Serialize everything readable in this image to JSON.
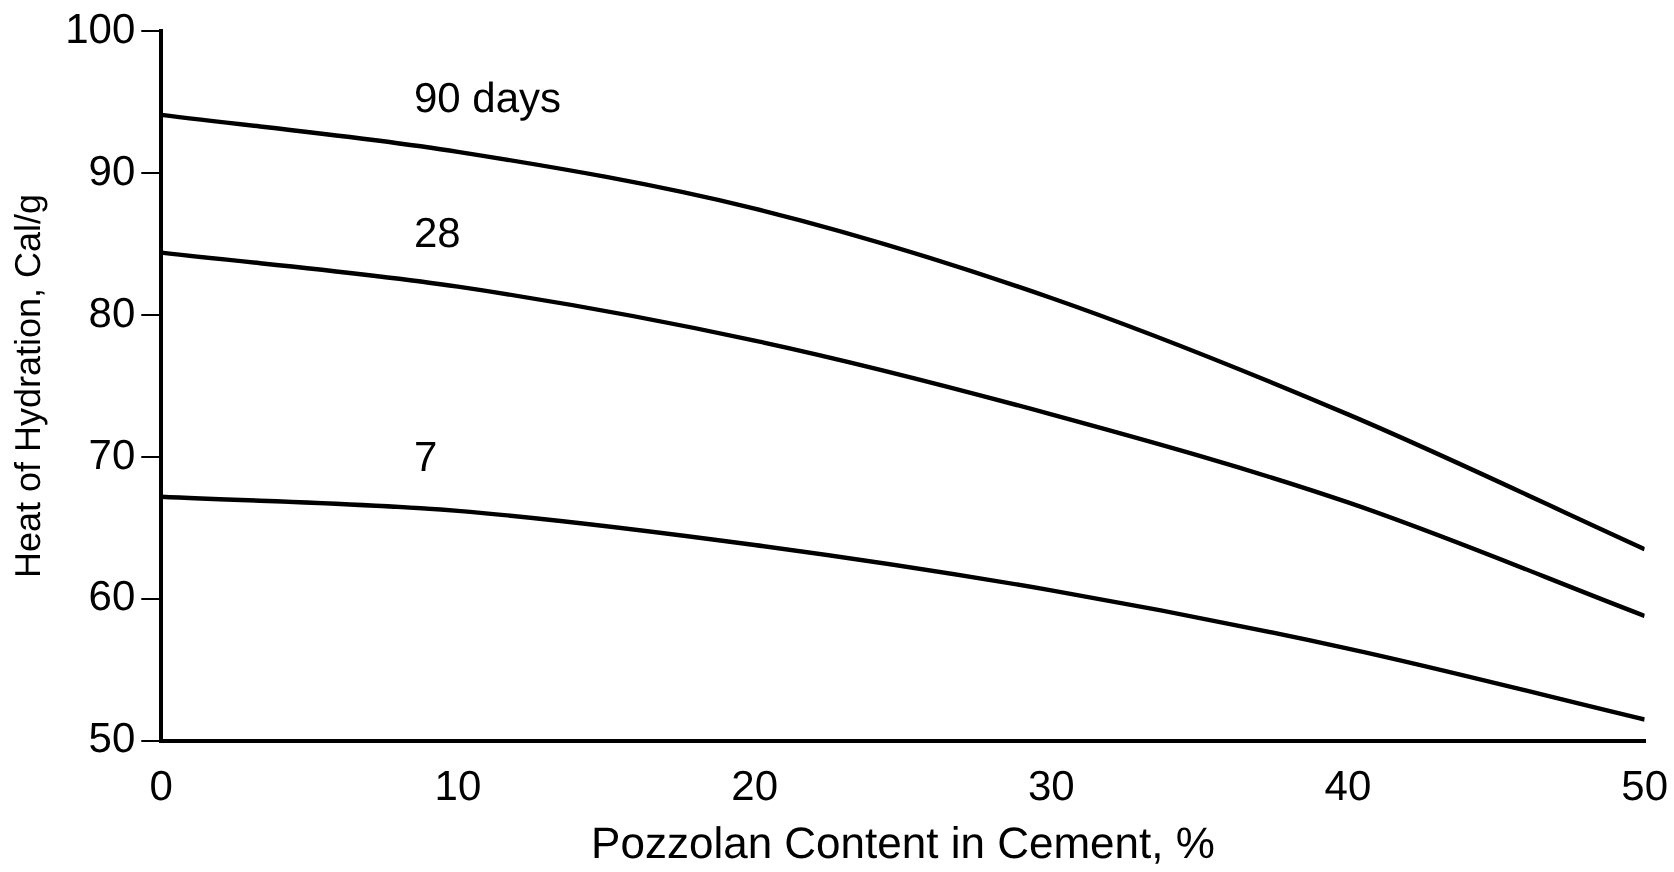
{
  "chart_data": {
    "type": "line",
    "xlabel": "Pozzolan Content in Cement, %",
    "ylabel": "Heat of Hydration, Cal/g",
    "x": [
      0,
      10,
      20,
      30,
      40,
      50
    ],
    "series": [
      {
        "name": "90 days",
        "color": "#000000",
        "values": [
          94.1,
          91.5,
          87.5,
          81.2,
          73,
          63.5
        ]
      },
      {
        "name": "28",
        "color": "#000000",
        "values": [
          84.4,
          82,
          78.2,
          73,
          66.8,
          58.8
        ]
      },
      {
        "name": "7",
        "color": "#000000",
        "values": [
          67.2,
          66.2,
          63.8,
          60.6,
          56.5,
          51.5
        ]
      }
    ],
    "xlim": [
      0,
      50
    ],
    "xticks": [
      0,
      10,
      20,
      30,
      40,
      50
    ],
    "ylim": [
      50,
      100
    ],
    "yticks": [
      50,
      60,
      70,
      80,
      90,
      100
    ],
    "grid": false,
    "legend": false,
    "marker": "none",
    "line_style": "solid"
  }
}
